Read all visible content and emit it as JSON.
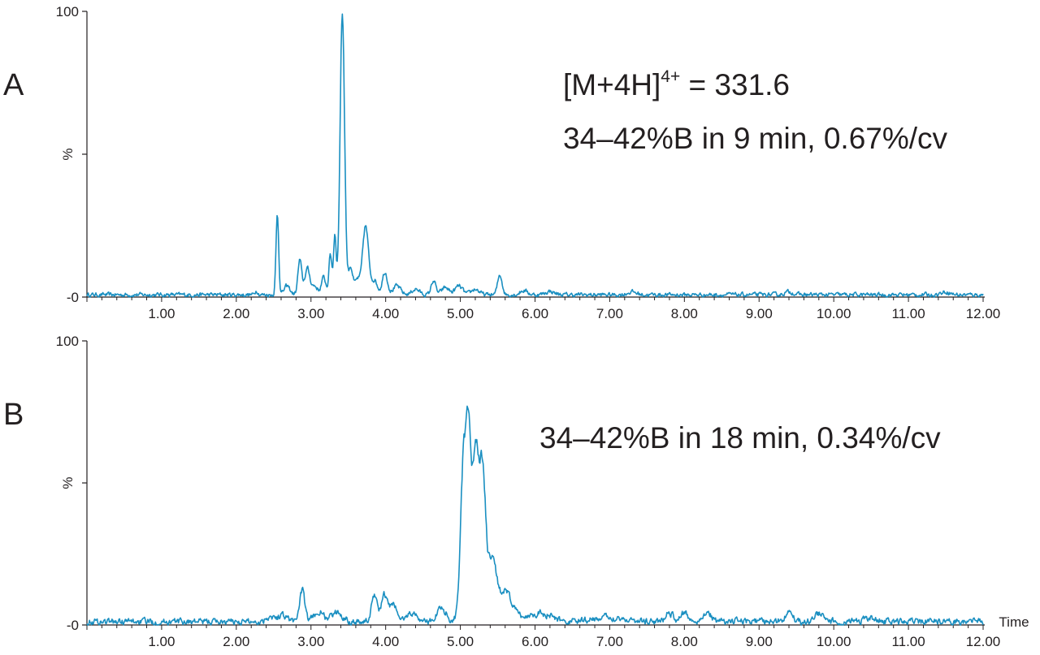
{
  "chart_data": [
    {
      "type": "line",
      "panel_label": "A",
      "annotations": [
        "[M+4H]",
        "4+",
        " = 331.6",
        "34–42%B in 9 min, 0.67%/cv"
      ],
      "ylabel": "%",
      "xlabel": "",
      "xlim": [
        0,
        12
      ],
      "ylim": [
        0,
        100
      ],
      "x_ticks": [
        "1.00",
        "2.00",
        "3.00",
        "4.00",
        "5.00",
        "6.00",
        "7.00",
        "8.00",
        "9.00",
        "10.00",
        "11.00",
        "12.00"
      ],
      "y_ticks": [
        "-0",
        "100"
      ],
      "line_color": "#1a8fc1",
      "series": [
        {
          "baseline": 0.8,
          "noise": 0.6,
          "peaks": [
            {
              "rt": 2.27,
              "height": 1.5,
              "width": 0.02
            },
            {
              "rt": 2.55,
              "height": 28,
              "width": 0.018
            },
            {
              "rt": 2.68,
              "height": 3,
              "width": 0.04
            },
            {
              "rt": 2.85,
              "height": 12,
              "width": 0.025
            },
            {
              "rt": 2.95,
              "height": 9,
              "width": 0.035
            },
            {
              "rt": 3.05,
              "height": 3,
              "width": 0.04
            },
            {
              "rt": 3.17,
              "height": 6,
              "width": 0.03
            },
            {
              "rt": 3.26,
              "height": 14,
              "width": 0.02
            },
            {
              "rt": 3.32,
              "height": 21,
              "width": 0.018
            },
            {
              "rt": 3.42,
              "height": 99,
              "width": 0.03
            },
            {
              "rt": 3.53,
              "height": 10,
              "width": 0.03
            },
            {
              "rt": 3.62,
              "height": 5,
              "width": 0.03
            },
            {
              "rt": 3.73,
              "height": 24,
              "width": 0.04
            },
            {
              "rt": 3.85,
              "height": 5,
              "width": 0.04
            },
            {
              "rt": 3.99,
              "height": 8,
              "width": 0.035
            },
            {
              "rt": 4.15,
              "height": 3,
              "width": 0.05
            },
            {
              "rt": 4.4,
              "height": 2,
              "width": 0.05
            },
            {
              "rt": 4.64,
              "height": 5,
              "width": 0.03
            },
            {
              "rt": 4.8,
              "height": 2.5,
              "width": 0.05
            },
            {
              "rt": 4.98,
              "height": 3,
              "width": 0.05
            },
            {
              "rt": 5.2,
              "height": 2,
              "width": 0.05
            },
            {
              "rt": 5.53,
              "height": 7,
              "width": 0.03
            },
            {
              "rt": 5.85,
              "height": 1.5,
              "width": 0.05
            },
            {
              "rt": 6.2,
              "height": 1.2,
              "width": 0.06
            },
            {
              "rt": 7.3,
              "height": 1,
              "width": 0.06
            },
            {
              "rt": 9.4,
              "height": 1,
              "width": 0.06
            },
            {
              "rt": 11.5,
              "height": 1,
              "width": 0.06
            }
          ]
        }
      ]
    },
    {
      "type": "line",
      "panel_label": "B",
      "annotations": [
        "34–42%B in 18 min, 0.34%/cv"
      ],
      "ylabel": "%",
      "xlabel": "Time",
      "xlim": [
        0,
        12
      ],
      "ylim": [
        0,
        100
      ],
      "x_ticks": [
        "1.00",
        "2.00",
        "3.00",
        "4.00",
        "5.00",
        "6.00",
        "7.00",
        "8.00",
        "9.00",
        "10.00",
        "11.00",
        "12.00"
      ],
      "y_ticks": [
        "-0",
        "100"
      ],
      "line_color": "#1a8fc1",
      "series": [
        {
          "baseline": 1.2,
          "noise": 0.9,
          "peaks": [
            {
              "rt": 2.45,
              "height": 2,
              "width": 0.05
            },
            {
              "rt": 2.62,
              "height": 2.5,
              "width": 0.06
            },
            {
              "rt": 2.88,
              "height": 11,
              "width": 0.035
            },
            {
              "rt": 3.1,
              "height": 3.5,
              "width": 0.06
            },
            {
              "rt": 3.35,
              "height": 3,
              "width": 0.08
            },
            {
              "rt": 3.85,
              "height": 10,
              "width": 0.035
            },
            {
              "rt": 3.98,
              "height": 9,
              "width": 0.04
            },
            {
              "rt": 4.1,
              "height": 6,
              "width": 0.05
            },
            {
              "rt": 4.35,
              "height": 3,
              "width": 0.07
            },
            {
              "rt": 4.75,
              "height": 5,
              "width": 0.06
            },
            {
              "rt": 5.05,
              "height": 60,
              "width": 0.045
            },
            {
              "rt": 5.11,
              "height": 38,
              "width": 0.025
            },
            {
              "rt": 5.2,
              "height": 62,
              "width": 0.05
            },
            {
              "rt": 5.3,
              "height": 45,
              "width": 0.04
            },
            {
              "rt": 5.42,
              "height": 20,
              "width": 0.06
            },
            {
              "rt": 5.6,
              "height": 10,
              "width": 0.1
            },
            {
              "rt": 6.05,
              "height": 3,
              "width": 0.15
            },
            {
              "rt": 7.0,
              "height": 1.5,
              "width": 0.2
            },
            {
              "rt": 7.8,
              "height": 3,
              "width": 0.05
            },
            {
              "rt": 8.0,
              "height": 3,
              "width": 0.05
            },
            {
              "rt": 8.3,
              "height": 3.5,
              "width": 0.05
            },
            {
              "rt": 9.4,
              "height": 3.5,
              "width": 0.05
            },
            {
              "rt": 9.8,
              "height": 3,
              "width": 0.05
            },
            {
              "rt": 10.5,
              "height": 1,
              "width": 0.1
            }
          ]
        }
      ]
    }
  ]
}
